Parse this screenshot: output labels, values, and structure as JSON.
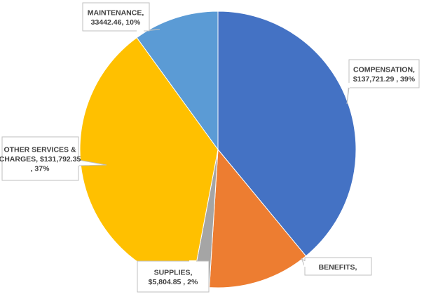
{
  "chart_data": {
    "type": "pie",
    "series": [
      {
        "slices": [
          {
            "category": "COMPENSATION",
            "value": 137721.29,
            "percent": 39,
            "label_lines": [
              "COMPENSATION,",
              "$137,721.29 , 39%"
            ],
            "color": "#4472C4"
          },
          {
            "category": "BENEFITS",
            "value": null,
            "percent": 12,
            "label_lines": [
              "BENEFITS,"
            ],
            "color": "#ED7D31"
          },
          {
            "category": "SUPPLIES",
            "value": 5804.85,
            "percent": 2,
            "label_lines": [
              "SUPPLIES,",
              "$5,804.85 , 2%"
            ],
            "color": "#A5A5A5"
          },
          {
            "category": "OTHER SERVICES & CHARGES",
            "value": 131792.35,
            "percent": 37,
            "label_lines": [
              "OTHER SERVICES &",
              "CHARGES,  $131,792.35",
              ", 37%"
            ],
            "color": "#FFC000"
          },
          {
            "category": "MAINTENANCE",
            "value": 33442.46,
            "percent": 10,
            "label_lines": [
              "MAINTENANCE,",
              "33442.46, 10%"
            ],
            "color": "#5B9BD5"
          }
        ]
      }
    ],
    "start_angle_deg": 0,
    "direction": "clockwise",
    "legend": "none",
    "data_labels": "callouts"
  }
}
